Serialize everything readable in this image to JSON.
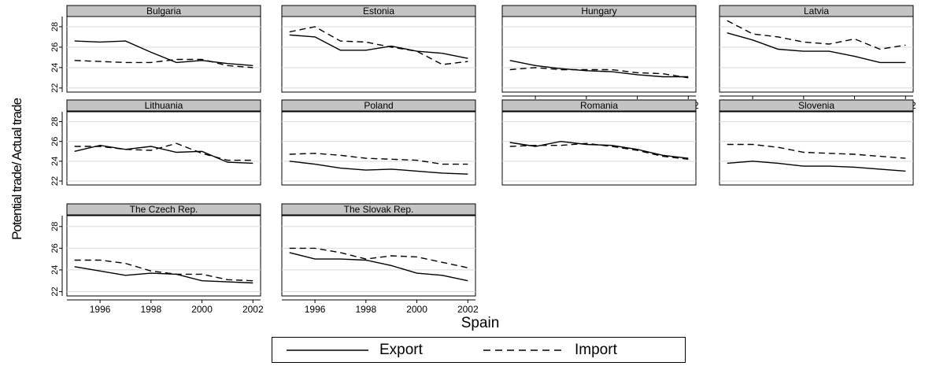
{
  "chart_data": {
    "type": "line",
    "ylabel": "Potential trade/ Actual trade",
    "xlabel": "Spain",
    "x": [
      1995,
      1996,
      1997,
      1998,
      1999,
      2000,
      2001,
      2002
    ],
    "xticks": [
      1996,
      1998,
      2000,
      2002
    ],
    "xtick_labels": [
      "1996",
      "1998",
      "2000",
      "2002"
    ],
    "xlim": [
      1994.7,
      2002.3
    ],
    "ylim": [
      21.6,
      29.0
    ],
    "yticks": [
      22,
      24,
      26,
      28
    ],
    "ytick_labels": [
      "22",
      "24",
      "26",
      "28"
    ],
    "grid": "horizontal",
    "legend": {
      "position": "bottom",
      "entries": [
        {
          "name": "Export",
          "style": "solid"
        },
        {
          "name": "Import",
          "style": "dashed"
        }
      ]
    },
    "panels": [
      {
        "title": "Bulgaria",
        "series": [
          {
            "name": "Export",
            "values": [
              26.6,
              26.5,
              26.6,
              25.5,
              24.5,
              24.7,
              24.4,
              24.2
            ]
          },
          {
            "name": "Import",
            "values": [
              24.7,
              24.6,
              24.5,
              24.5,
              24.8,
              24.8,
              24.2,
              24.0
            ]
          }
        ]
      },
      {
        "title": "Estonia",
        "series": [
          {
            "name": "Export",
            "values": [
              27.2,
              27.0,
              25.7,
              25.7,
              26.1,
              25.6,
              25.4,
              24.9
            ]
          },
          {
            "name": "Import",
            "values": [
              27.5,
              28.0,
              26.6,
              26.5,
              26.0,
              25.6,
              24.3,
              24.6
            ]
          }
        ]
      },
      {
        "title": "Hungary",
        "series": [
          {
            "name": "Export",
            "values": [
              24.7,
              24.2,
              23.9,
              23.7,
              23.6,
              23.3,
              23.1,
              23.1
            ]
          },
          {
            "name": "Import",
            "values": [
              23.8,
              24.0,
              23.8,
              23.8,
              23.8,
              23.5,
              23.4,
              23.0
            ]
          }
        ]
      },
      {
        "title": "Latvia",
        "series": [
          {
            "name": "Export",
            "values": [
              27.4,
              26.7,
              25.8,
              25.6,
              25.6,
              25.1,
              24.5,
              24.5
            ]
          },
          {
            "name": "Import",
            "values": [
              28.6,
              27.3,
              27.0,
              26.5,
              26.3,
              26.8,
              25.8,
              26.2
            ]
          }
        ]
      },
      {
        "title": "Lithuania",
        "series": [
          {
            "name": "Export",
            "values": [
              25.0,
              25.6,
              25.2,
              25.5,
              24.9,
              25.0,
              23.9,
              23.8
            ]
          },
          {
            "name": "Import",
            "values": [
              25.5,
              25.5,
              25.2,
              25.1,
              25.8,
              24.8,
              24.1,
              24.1
            ]
          }
        ]
      },
      {
        "title": "Poland",
        "series": [
          {
            "name": "Export",
            "values": [
              24.0,
              23.7,
              23.3,
              23.1,
              23.2,
              23.0,
              22.8,
              22.7
            ]
          },
          {
            "name": "Import",
            "values": [
              24.7,
              24.8,
              24.6,
              24.3,
              24.2,
              24.1,
              23.7,
              23.7
            ]
          }
        ]
      },
      {
        "title": "Romania",
        "series": [
          {
            "name": "Export",
            "values": [
              25.9,
              25.5,
              26.0,
              25.7,
              25.6,
              25.2,
              24.6,
              24.3
            ]
          },
          {
            "name": "Import",
            "values": [
              25.5,
              25.6,
              25.6,
              25.8,
              25.5,
              25.1,
              24.5,
              24.2
            ]
          }
        ]
      },
      {
        "title": "Slovenia",
        "series": [
          {
            "name": "Export",
            "values": [
              23.8,
              24.0,
              23.8,
              23.5,
              23.5,
              23.4,
              23.2,
              23.0
            ]
          },
          {
            "name": "Import",
            "values": [
              25.7,
              25.7,
              25.4,
              24.9,
              24.8,
              24.7,
              24.5,
              24.3
            ]
          }
        ]
      },
      {
        "title": "The Czech Rep.",
        "series": [
          {
            "name": "Export",
            "values": [
              24.3,
              23.9,
              23.5,
              23.7,
              23.6,
              23.0,
              22.9,
              22.8
            ]
          },
          {
            "name": "Import",
            "values": [
              24.9,
              24.9,
              24.6,
              23.9,
              23.6,
              23.6,
              23.1,
              23.0
            ]
          }
        ]
      },
      {
        "title": "The Slovak Rep.",
        "series": [
          {
            "name": "Export",
            "values": [
              25.6,
              25.0,
              25.0,
              24.9,
              24.4,
              23.7,
              23.5,
              23.0
            ]
          },
          {
            "name": "Import",
            "values": [
              26.0,
              26.0,
              25.6,
              25.0,
              25.3,
              25.2,
              24.7,
              24.2
            ]
          }
        ]
      }
    ]
  }
}
